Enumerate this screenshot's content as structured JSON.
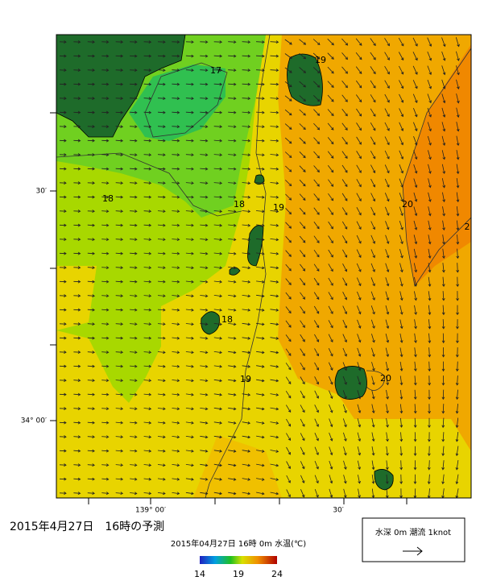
{
  "map": {
    "title": "2015年4月27日　16時の予測",
    "subtitle": "2015年04月27日 16時 0m 水温(℃)",
    "lat_labels": [
      "30′",
      "34° 00′"
    ],
    "lon_labels": [
      "139° 00′",
      "30′"
    ],
    "contour_labels": [
      "17",
      "18",
      "18",
      "19",
      "19",
      "20",
      "2",
      "18",
      "19",
      "20"
    ],
    "colorbar": {
      "min": 14,
      "max": 24,
      "ticks": [
        14,
        19,
        24
      ]
    },
    "legend": {
      "label": "水深 0m 潮流 1knot"
    }
  }
}
